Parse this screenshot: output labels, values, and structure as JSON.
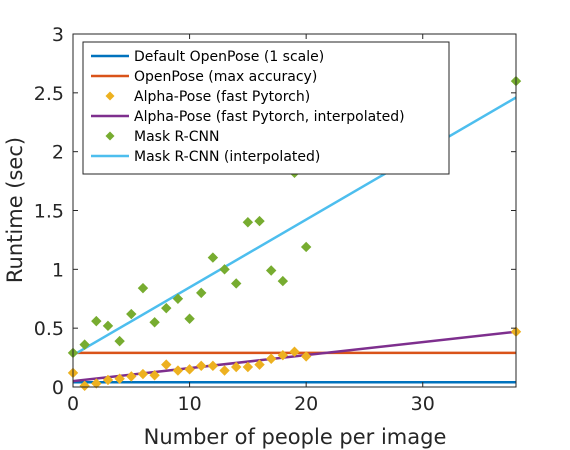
{
  "chart_data": {
    "type": "scatter",
    "title": "",
    "xlabel": "Number of people per image",
    "ylabel": "Runtime (sec)",
    "xlim": [
      0,
      38
    ],
    "ylim": [
      0,
      3
    ],
    "xticks": [
      0,
      10,
      20,
      30
    ],
    "xtick_labels": [
      "0",
      "10",
      "20",
      "30"
    ],
    "yticks": [
      0,
      0.5,
      1,
      1.5,
      2,
      2.5,
      3
    ],
    "ytick_labels": [
      "0",
      "0.5",
      "1",
      "1.5",
      "2",
      "2.5",
      "3"
    ],
    "grid": false,
    "legend_position": "top-left",
    "series": [
      {
        "name": "Default OpenPose (1 scale)",
        "kind": "line",
        "color": "#0072BD",
        "x": [
          0,
          38
        ],
        "y": [
          0.04,
          0.04
        ]
      },
      {
        "name": "OpenPose (max accuracy)",
        "kind": "line",
        "color": "#D95319",
        "x": [
          0,
          38
        ],
        "y": [
          0.29,
          0.29
        ]
      },
      {
        "name": "Alpha-Pose (fast Pytorch)",
        "kind": "points",
        "color": "#EDB120",
        "x": [
          0,
          1,
          2,
          3,
          4,
          5,
          6,
          7,
          8,
          9,
          10,
          11,
          12,
          13,
          14,
          15,
          16,
          17,
          18,
          19,
          20,
          38
        ],
        "y": [
          0.12,
          0.01,
          0.03,
          0.06,
          0.07,
          0.09,
          0.11,
          0.1,
          0.19,
          0.14,
          0.15,
          0.18,
          0.18,
          0.14,
          0.17,
          0.17,
          0.19,
          0.24,
          0.27,
          0.3,
          0.26,
          0.47
        ]
      },
      {
        "name": "Alpha-Pose (fast Pytorch, interpolated)",
        "kind": "line",
        "color": "#7E2F8E",
        "x": [
          0,
          38
        ],
        "y": [
          0.05,
          0.47
        ]
      },
      {
        "name": "Mask R-CNN",
        "kind": "points",
        "color": "#77AC30",
        "x": [
          0,
          1,
          2,
          3,
          4,
          5,
          6,
          7,
          8,
          9,
          10,
          11,
          12,
          13,
          14,
          15,
          16,
          17,
          18,
          19,
          20,
          38
        ],
        "y": [
          0.29,
          0.36,
          0.56,
          0.52,
          0.39,
          0.62,
          0.84,
          0.55,
          0.67,
          0.75,
          0.58,
          0.8,
          1.1,
          1.0,
          0.88,
          1.4,
          1.41,
          0.99,
          0.9,
          1.82,
          1.19,
          2.6
        ]
      },
      {
        "name": "Mask R-CNN (interpolated)",
        "kind": "line",
        "color": "#4DBEEE",
        "x": [
          0,
          38
        ],
        "y": [
          0.27,
          2.46
        ]
      }
    ]
  }
}
